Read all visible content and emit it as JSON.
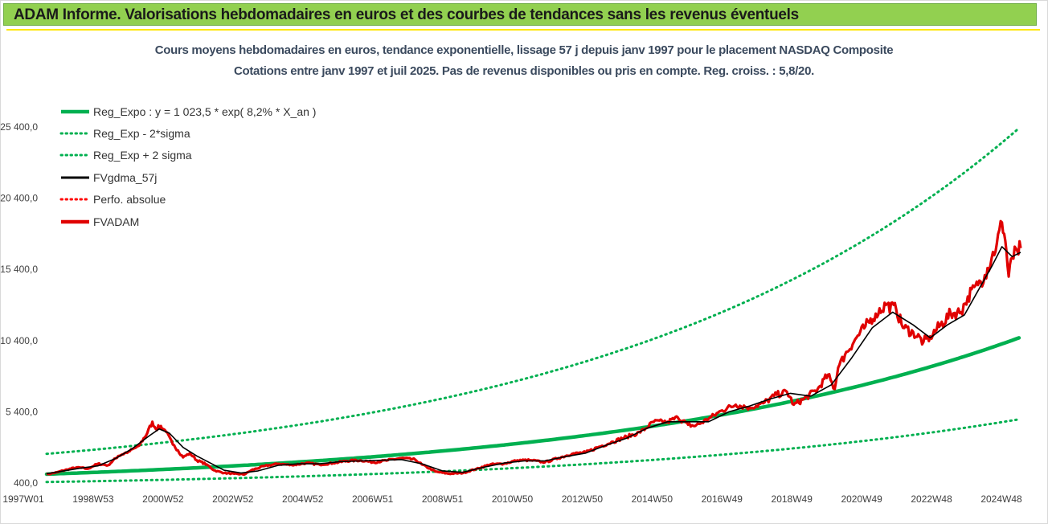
{
  "header": {
    "banner_title": "ADAM Informe. Valorisations hebdomadaires en euros et des courbes de tendances sans les revenus éventuels"
  },
  "colors": {
    "banner_bg": "#92d050",
    "trend_green": "#00b050",
    "fvgdma_black": "#000000",
    "fvadam_red": "#e00000",
    "perfo_red": "#ff0000"
  },
  "chart_data": {
    "type": "line",
    "title": "Cours moyens hebdomadaires en euros, tendance exponentielle, lissage 57 j depuis janv 1997 pour le placement NASDAQ Composite",
    "subtitle": "Cotations entre janv 1997 et juil 2025. Pas de revenus disponibles ou pris en compte. Reg. croiss. : 5,8/20.",
    "x_tick_labels": [
      "1997W01",
      "1998W53",
      "2000W52",
      "2002W52",
      "2004W52",
      "2006W51",
      "2008W51",
      "2010W50",
      "2012W50",
      "2014W50",
      "2016W49",
      "2018W49",
      "2020W49",
      "2022W48",
      "2024W48"
    ],
    "y_tick_labels": [
      "400,0",
      "5 400,0",
      "10 400,0",
      "15 400,0",
      "20 400,0",
      "25 400,0"
    ],
    "ylim": [
      400,
      28000
    ],
    "xlim": [
      1997.0,
      2025.55
    ],
    "y_scale": "linear",
    "grid": false,
    "legend_position": "top-left",
    "legend": [
      {
        "label": "Reg_Expo : y = 1 023,5 * exp( 8,2% *  X_an )",
        "style": "solid-thick",
        "color": "#00b050"
      },
      {
        "label": "Reg_Exp - 2*sigma",
        "style": "dotted",
        "color": "#00b050"
      },
      {
        "label": "Reg_Exp + 2 sigma",
        "style": "dotted",
        "color": "#00b050"
      },
      {
        "label": "FVgdma_57j",
        "style": "solid",
        "color": "#000000"
      },
      {
        "label": "Perfo. absolue",
        "style": "dotted",
        "color": "#ff0000"
      },
      {
        "label": "FVADAM",
        "style": "solid-thick",
        "color": "#e00000"
      }
    ],
    "regression": {
      "a": 1023.5,
      "rate": 0.082,
      "lower_factor": 0.46,
      "upper_factor": 2.39
    },
    "series": [
      {
        "name": "FVADAM",
        "x": [
          1997.0,
          1997.3,
          1997.6,
          1997.9,
          1998.2,
          1998.5,
          1998.8,
          1999.1,
          1999.4,
          1999.7,
          1999.95,
          2000.1,
          2000.2,
          2000.35,
          2000.5,
          2000.7,
          2000.85,
          2001.0,
          2001.2,
          2001.4,
          2001.7,
          2001.9,
          2002.2,
          2002.5,
          2002.8,
          2003.0,
          2003.4,
          2003.8,
          2004.2,
          2004.6,
          2005.0,
          2005.4,
          2005.8,
          2006.2,
          2006.6,
          2007.0,
          2007.4,
          2007.8,
          2008.0,
          2008.4,
          2008.8,
          2009.2,
          2009.6,
          2010.0,
          2010.4,
          2010.8,
          2011.2,
          2011.6,
          2012.0,
          2012.4,
          2012.8,
          2013.2,
          2013.6,
          2014.0,
          2014.4,
          2014.8,
          2015.2,
          2015.5,
          2015.8,
          2016.0,
          2016.4,
          2016.8,
          2017.2,
          2017.6,
          2018.0,
          2018.4,
          2018.7,
          2018.9,
          2019.2,
          2019.6,
          2019.9,
          2020.1,
          2020.2,
          2020.4,
          2020.7,
          2021.0,
          2021.3,
          2021.6,
          2021.9,
          2022.1,
          2022.4,
          2022.7,
          2022.9,
          2023.2,
          2023.5,
          2023.8,
          2024.0,
          2024.3,
          2024.5,
          2024.7,
          2024.85,
          2025.0,
          2025.1,
          2025.2,
          2025.3,
          2025.45,
          2025.55
        ],
        "values": [
          1000,
          1150,
          1350,
          1500,
          1400,
          1750,
          1650,
          2300,
          2600,
          3000,
          3900,
          4700,
          4200,
          4400,
          4000,
          3100,
          2700,
          2200,
          2500,
          2000,
          1700,
          1300,
          1100,
          1050,
          1000,
          1300,
          1600,
          1750,
          1650,
          1800,
          1700,
          1800,
          1950,
          2000,
          1850,
          2000,
          2150,
          2050,
          1700,
          1200,
          1050,
          1100,
          1400,
          1700,
          1750,
          2000,
          2000,
          1850,
          2150,
          2450,
          2550,
          2950,
          3300,
          3650,
          3950,
          4700,
          4700,
          5000,
          4500,
          4400,
          4900,
          5500,
          5900,
          5700,
          6000,
          6600,
          6800,
          5900,
          6300,
          7000,
          8000,
          7000,
          8500,
          9400,
          10500,
          11400,
          12300,
          12900,
          12600,
          11300,
          11000,
          10300,
          10700,
          11500,
          12300,
          12400,
          13500,
          14300,
          15000,
          16200,
          17200,
          18700,
          17400,
          14900,
          16200,
          16700,
          16900
        ]
      },
      {
        "name": "FVgdma_57j",
        "x": [
          1997.0,
          1997.5,
          1998.0,
          1998.5,
          1999.0,
          1999.5,
          2000.0,
          2000.3,
          2000.6,
          2001.0,
          2001.4,
          2001.8,
          2002.2,
          2002.7,
          2003.2,
          2003.8,
          2004.4,
          2005.0,
          2005.6,
          2006.2,
          2006.8,
          2007.4,
          2008.0,
          2008.6,
          2009.2,
          2009.8,
          2010.4,
          2011.0,
          2011.6,
          2012.2,
          2012.8,
          2013.4,
          2014.0,
          2014.6,
          2015.2,
          2015.8,
          2016.4,
          2017.0,
          2017.6,
          2018.2,
          2018.8,
          2019.4,
          2020.0,
          2020.6,
          2021.2,
          2021.8,
          2022.4,
          2022.9,
          2023.4,
          2023.9,
          2024.3,
          2024.7,
          2025.0,
          2025.3,
          2025.55
        ],
        "values": [
          1050,
          1250,
          1450,
          1600,
          2100,
          2800,
          3700,
          4200,
          3900,
          2900,
          2300,
          1800,
          1300,
          1100,
          1250,
          1650,
          1750,
          1750,
          1900,
          1950,
          2000,
          2050,
          1750,
          1250,
          1150,
          1500,
          1800,
          1950,
          1950,
          2250,
          2500,
          3050,
          3550,
          4250,
          4700,
          4700,
          4700,
          5400,
          5800,
          6300,
          6700,
          6500,
          7300,
          9200,
          11300,
          12400,
          11500,
          10600,
          11500,
          12200,
          13900,
          15600,
          17000,
          16300,
          16600
        ]
      },
      {
        "name": "Reg_Expo",
        "formula": "1 023,5 * exp(8,2% * X_an)"
      },
      {
        "name": "Reg_Exp - 2*sigma",
        "formula": "0,46 * Reg_Expo"
      },
      {
        "name": "Reg_Exp + 2 sigma",
        "formula": "2,39 * Reg_Expo"
      }
    ]
  }
}
